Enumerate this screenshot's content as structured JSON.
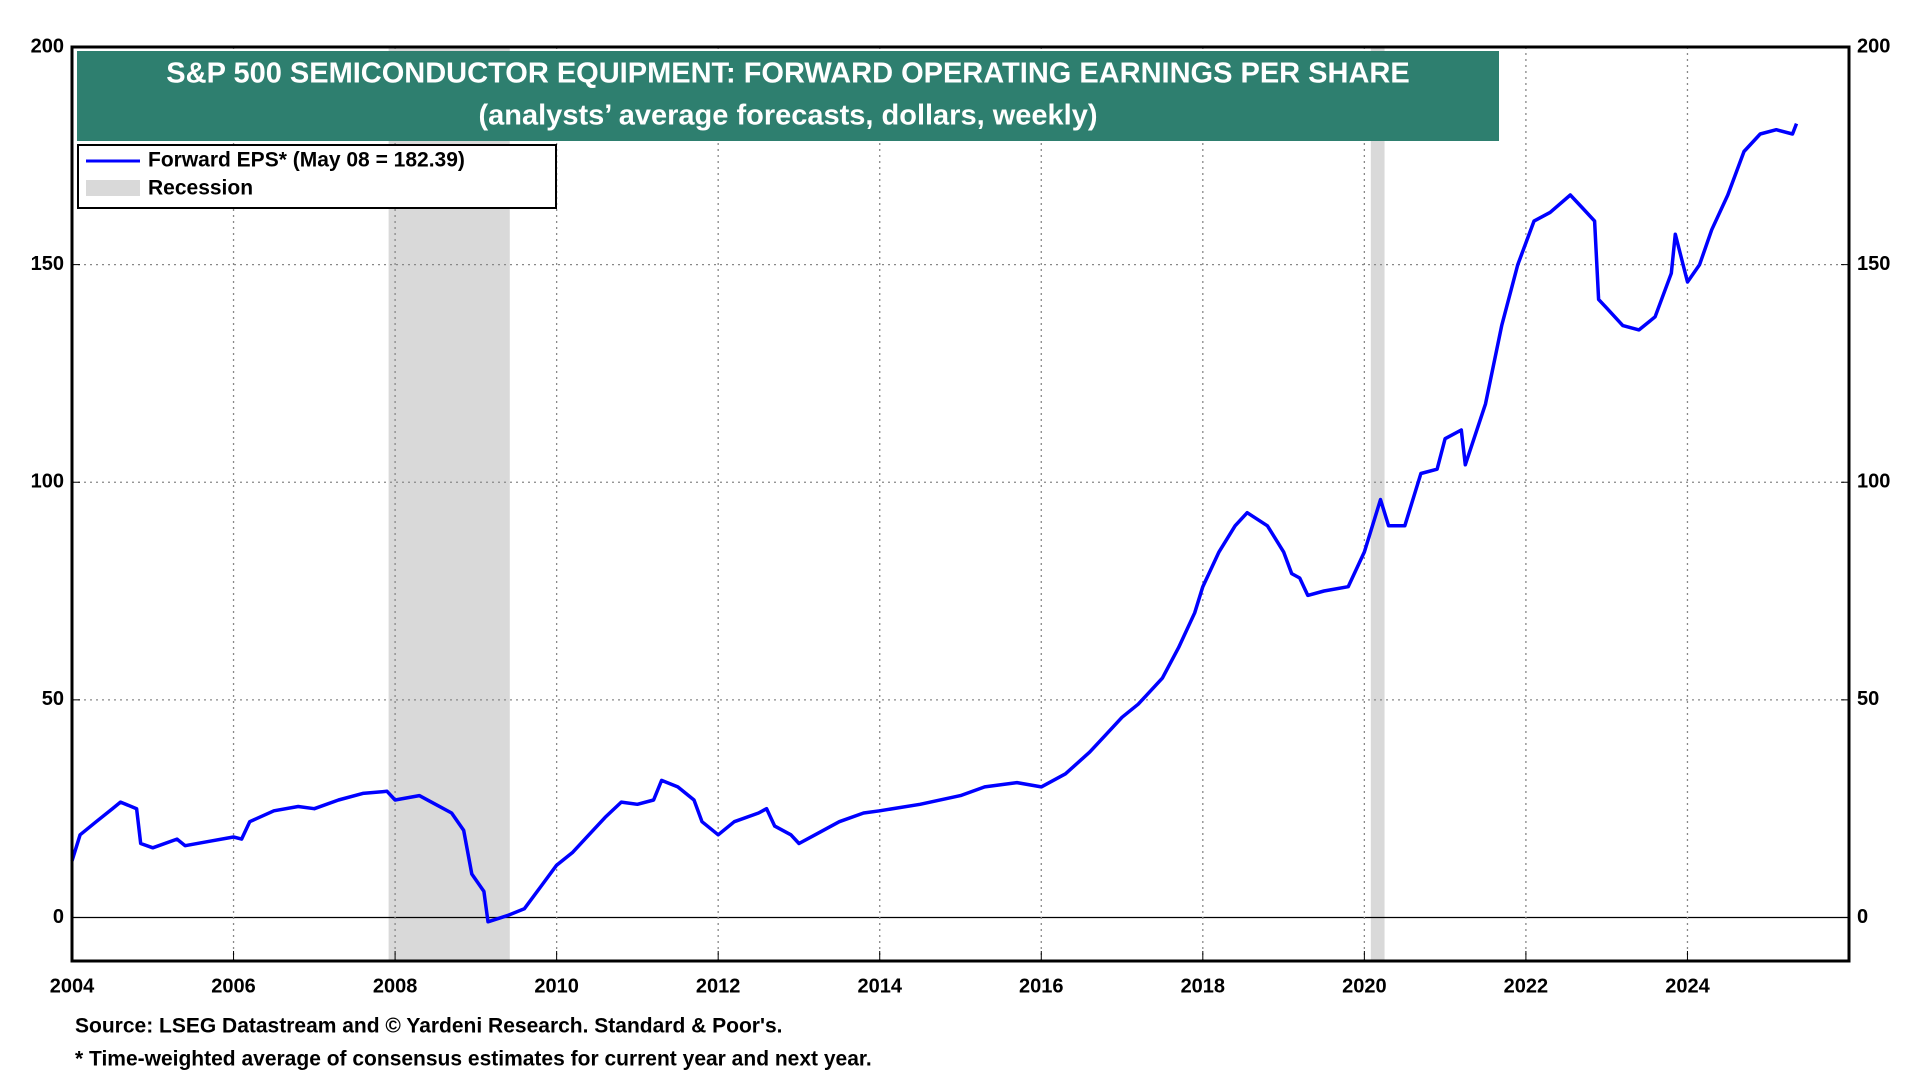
{
  "chart_data": {
    "type": "line",
    "title": "S&P 500 SEMICONDUCTOR EQUIPMENT: FORWARD OPERATING EARNINGS PER SHARE",
    "subtitle": "(analysts’ average forecasts, dollars, weekly)",
    "xlim": [
      2004,
      2026
    ],
    "xticks": [
      2004,
      2006,
      2008,
      2010,
      2012,
      2014,
      2016,
      2018,
      2020,
      2022,
      2024
    ],
    "ylim": [
      -10,
      200
    ],
    "yticks": [
      0,
      50,
      100,
      150,
      200
    ],
    "grid": true,
    "legend": "top-left",
    "recession_label": "Recession",
    "recession_color": "#d9d9d9",
    "recessions": [
      {
        "start": 2007.92,
        "end": 2009.42
      },
      {
        "start": 2020.08,
        "end": 2020.25
      }
    ],
    "series": [
      {
        "name": "Forward EPS* (May 08 = 182.39)",
        "color": "#0000ff",
        "x": [
          2004.0,
          2004.1,
          2004.3,
          2004.5,
          2004.6,
          2004.8,
          2004.85,
          2005.0,
          2005.3,
          2005.4,
          2005.7,
          2006.0,
          2006.1,
          2006.2,
          2006.5,
          2006.8,
          2007.0,
          2007.3,
          2007.6,
          2007.9,
          2008.0,
          2008.3,
          2008.5,
          2008.7,
          2008.85,
          2008.95,
          2009.1,
          2009.15,
          2009.4,
          2009.6,
          2009.8,
          2010.0,
          2010.2,
          2010.4,
          2010.6,
          2010.8,
          2011.0,
          2011.2,
          2011.3,
          2011.5,
          2011.7,
          2011.8,
          2012.0,
          2012.2,
          2012.5,
          2012.6,
          2012.7,
          2012.9,
          2013.0,
          2013.2,
          2013.5,
          2013.8,
          2014.0,
          2014.5,
          2015.0,
          2015.3,
          2015.7,
          2016.0,
          2016.3,
          2016.6,
          2016.8,
          2017.0,
          2017.2,
          2017.5,
          2017.7,
          2017.9,
          2018.0,
          2018.2,
          2018.4,
          2018.55,
          2018.8,
          2019.0,
          2019.1,
          2019.2,
          2019.3,
          2019.5,
          2019.8,
          2020.0,
          2020.2,
          2020.3,
          2020.5,
          2020.7,
          2020.9,
          2021.0,
          2021.2,
          2021.25,
          2021.5,
          2021.7,
          2021.9,
          2022.1,
          2022.3,
          2022.55,
          2022.7,
          2022.85,
          2022.9,
          2023.0,
          2023.2,
          2023.4,
          2023.6,
          2023.8,
          2023.85,
          2024.0,
          2024.15,
          2024.3,
          2024.5,
          2024.7,
          2024.9,
          2025.1,
          2025.3,
          2025.35
        ],
        "values": [
          13,
          19,
          22,
          25,
          26.5,
          25,
          17,
          16,
          18,
          16.5,
          17.5,
          18.5,
          18,
          22,
          24.5,
          25.5,
          25,
          27,
          28.5,
          29,
          27,
          28,
          26,
          24,
          20,
          10,
          6,
          -1,
          0.5,
          2,
          7,
          12,
          15,
          19,
          23,
          26.5,
          26,
          27,
          31.5,
          30,
          27,
          22,
          19,
          22,
          24,
          25,
          21,
          19,
          17,
          19,
          22,
          24,
          24.5,
          26,
          28,
          30,
          31,
          30,
          33,
          38,
          42,
          46,
          49,
          55,
          62,
          70,
          76,
          84,
          90,
          93,
          90,
          84,
          79,
          78,
          74,
          75,
          76,
          84,
          96,
          90,
          90,
          102,
          103,
          110,
          112,
          104,
          118,
          136,
          150,
          160,
          162,
          166,
          163,
          160,
          142,
          140,
          136,
          135,
          138,
          148,
          157,
          146,
          150,
          158,
          166,
          176,
          180,
          181,
          180,
          182.39
        ]
      }
    ],
    "notes": [
      "Source: LSEG Datastream and © Yardeni Research. Standard & Poor's.",
      "* Time-weighted average of consensus estimates for current year and next year."
    ]
  }
}
